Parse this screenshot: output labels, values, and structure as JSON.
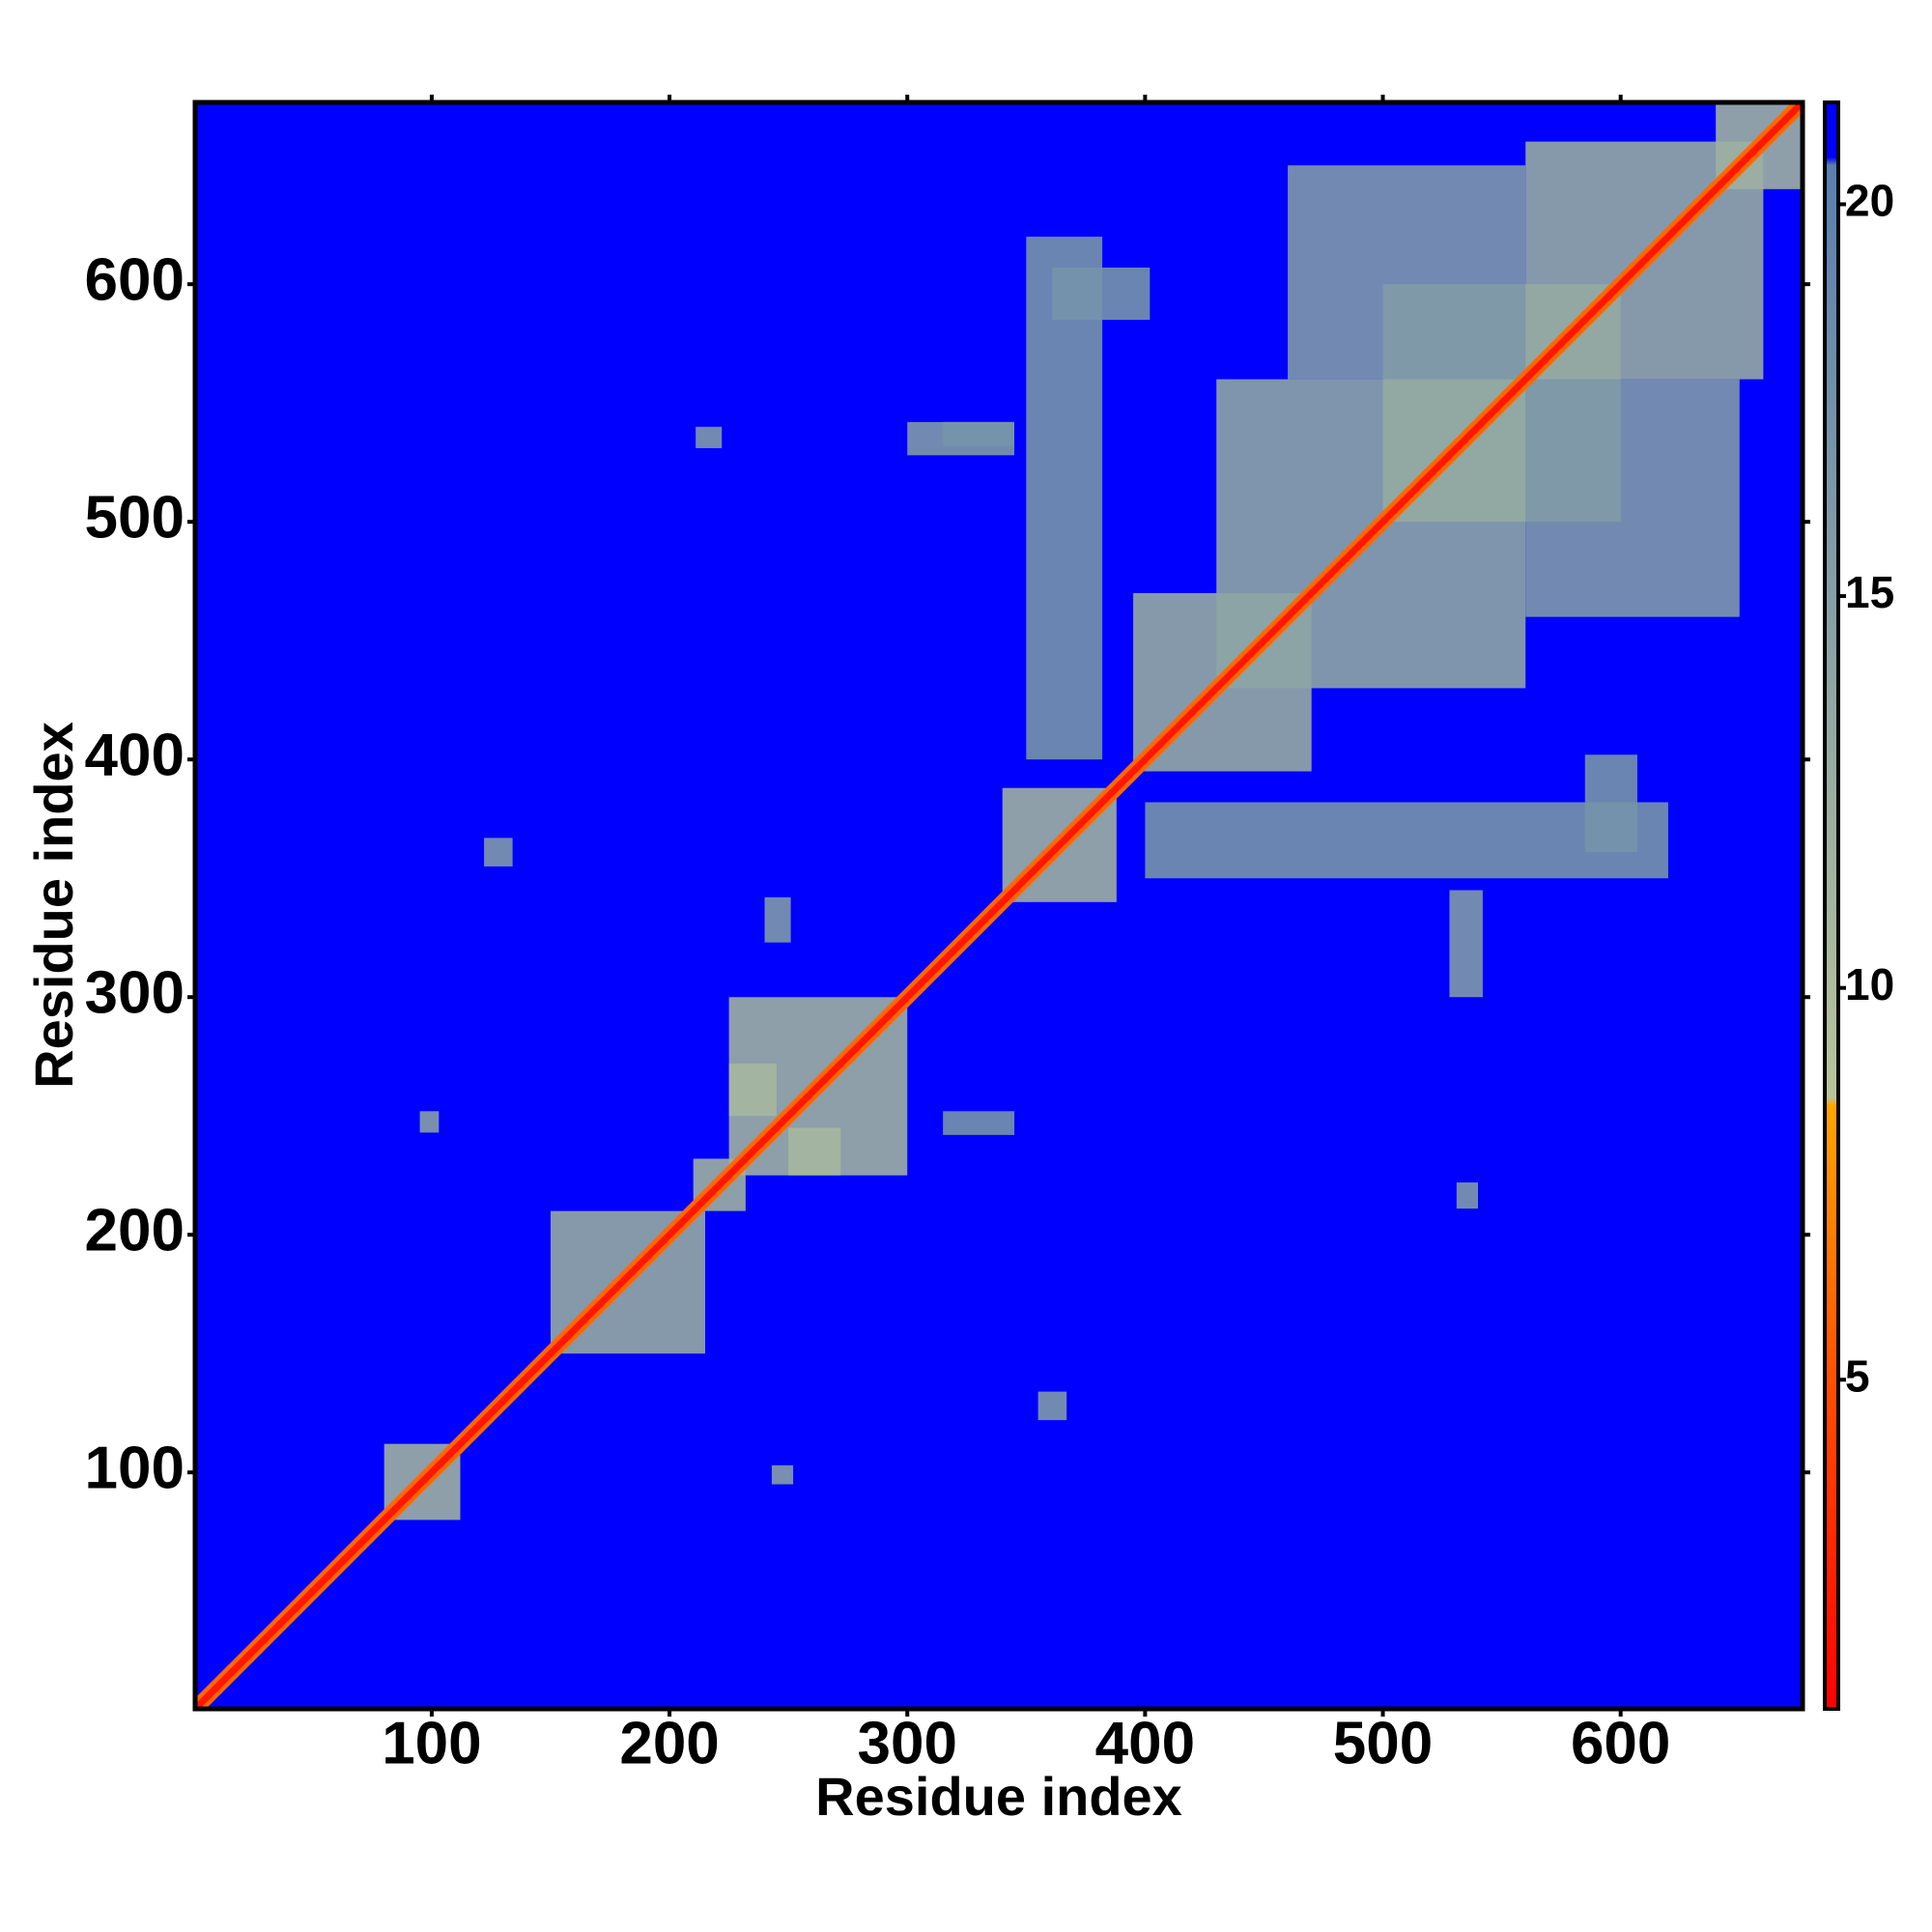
{
  "chart_data": {
    "type": "heatmap",
    "xlabel": "Residue index",
    "ylabel": "Residue index",
    "xlim": [
      0.5,
      676.5
    ],
    "ylim": [
      0.5,
      676.5
    ],
    "xticks": [
      100,
      200,
      300,
      400,
      500,
      600
    ],
    "yticks": [
      100,
      200,
      300,
      400,
      500,
      600
    ],
    "background_value": 21,
    "diagonal": [
      {
        "width": 9,
        "value": 6
      },
      {
        "width": 4,
        "value": 2
      }
    ],
    "cells": [
      {
        "x": [
          80,
          112
        ],
        "y": [
          80,
          112
        ],
        "value": 12
      },
      {
        "x": [
          150,
          215
        ],
        "y": [
          150,
          210
        ],
        "value": 13
      },
      {
        "x": [
          210,
          232
        ],
        "y": [
          210,
          232
        ],
        "value": 12
      },
      {
        "x": [
          225,
          300
        ],
        "y": [
          225,
          300
        ],
        "value": 12
      },
      {
        "x": [
          250,
          272
        ],
        "y": [
          225,
          245
        ],
        "value": 11
      },
      {
        "x": [
          225,
          245
        ],
        "y": [
          250,
          272
        ],
        "value": 11
      },
      {
        "x": [
          340,
          388
        ],
        "y": [
          340,
          388
        ],
        "value": 12
      },
      {
        "x": [
          395,
          470
        ],
        "y": [
          395,
          470
        ],
        "value": 13
      },
      {
        "x": [
          430,
          560
        ],
        "y": [
          430,
          560
        ],
        "value": 14
      },
      {
        "x": [
          500,
          600
        ],
        "y": [
          500,
          600
        ],
        "value": 13
      },
      {
        "x": [
          560,
          660
        ],
        "y": [
          560,
          660
        ],
        "value": 13
      },
      {
        "x": [
          640,
          676
        ],
        "y": [
          640,
          676
        ],
        "value": 12
      },
      {
        "x": [
          350,
          382
        ],
        "y": [
          400,
          620
        ],
        "value": 17
      },
      {
        "x": [
          400,
          620
        ],
        "y": [
          350,
          382
        ],
        "value": 17
      },
      {
        "x": [
          460,
          560
        ],
        "y": [
          560,
          650
        ],
        "value": 16
      },
      {
        "x": [
          560,
          650
        ],
        "y": [
          460,
          560
        ],
        "value": 16
      },
      {
        "x": [
          528,
          542
        ],
        "y": [
          300,
          345
        ],
        "value": 16
      },
      {
        "x": [
          300,
          345
        ],
        "y": [
          528,
          542
        ],
        "value": 16
      },
      {
        "x": [
          585,
          607
        ],
        "y": [
          361,
          402
        ],
        "value": 17
      },
      {
        "x": [
          361,
          402
        ],
        "y": [
          585,
          607
        ],
        "value": 17
      },
      {
        "x": [
          122,
          134
        ],
        "y": [
          355,
          367
        ],
        "value": 16
      },
      {
        "x": [
          355,
          367
        ],
        "y": [
          122,
          134
        ],
        "value": 16
      },
      {
        "x": [
          243,
          252
        ],
        "y": [
          95,
          103
        ],
        "value": 15
      },
      {
        "x": [
          95,
          103
        ],
        "y": [
          243,
          252
        ],
        "value": 15
      },
      {
        "x": [
          211,
          222
        ],
        "y": [
          531,
          540
        ],
        "value": 16
      },
      {
        "x": [
          531,
          540
        ],
        "y": [
          211,
          222
        ],
        "value": 16
      },
      {
        "x": [
          315,
          345
        ],
        "y": [
          532,
          542
        ],
        "value": 17
      },
      {
        "x": [
          240,
          251
        ],
        "y": [
          323,
          342
        ],
        "value": 16
      },
      {
        "x": [
          315,
          345
        ],
        "y": [
          242,
          252
        ],
        "value": 17
      }
    ],
    "colorbar": {
      "lim": [
        0.8,
        21.3
      ],
      "ticks": [
        5,
        10,
        15,
        20
      ],
      "colormap": [
        {
          "value": 0.8,
          "color": "#ff0000"
        },
        {
          "value": 5,
          "color": "#ff5000"
        },
        {
          "value": 8.5,
          "color": "#ffa500"
        },
        {
          "value": 8.6,
          "color": "#b8c49a"
        },
        {
          "value": 20.5,
          "color": "#5a7fb0"
        },
        {
          "value": 20.6,
          "color": "#0000ff"
        },
        {
          "value": 21.3,
          "color": "#0000ff"
        }
      ]
    }
  }
}
